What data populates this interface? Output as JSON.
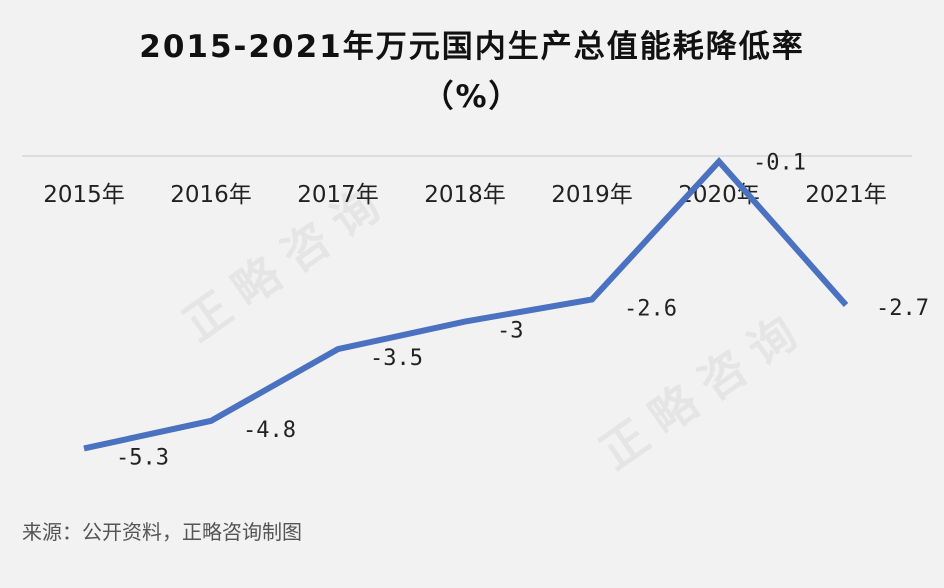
{
  "title_line1": "2015-2021年万元国内生产总值能耗降低率",
  "title_line2": "（%）",
  "source": "来源：公开资料，正略咨询制图",
  "watermarks": [
    "正略咨询",
    "正略咨询"
  ],
  "colors": {
    "line": "#4a72c0",
    "axis": "#d6d6d6",
    "text": "#222222",
    "background": "#f2f2f2"
  },
  "chart_data": {
    "type": "line",
    "categories": [
      "2015年",
      "2016年",
      "2017年",
      "2018年",
      "2019年",
      "2020年",
      "2021年"
    ],
    "series": [
      {
        "values": [
          -5.3,
          -4.8,
          -3.5,
          -3.0,
          -2.6,
          -0.1,
          -2.7
        ]
      }
    ],
    "data_labels": [
      "-5.3",
      "-4.8",
      "-3.5",
      "-3",
      "-2.6",
      "-0.1",
      "-2.7"
    ],
    "ylim": [
      -5.6,
      0
    ],
    "grid": false,
    "legend": "none"
  }
}
